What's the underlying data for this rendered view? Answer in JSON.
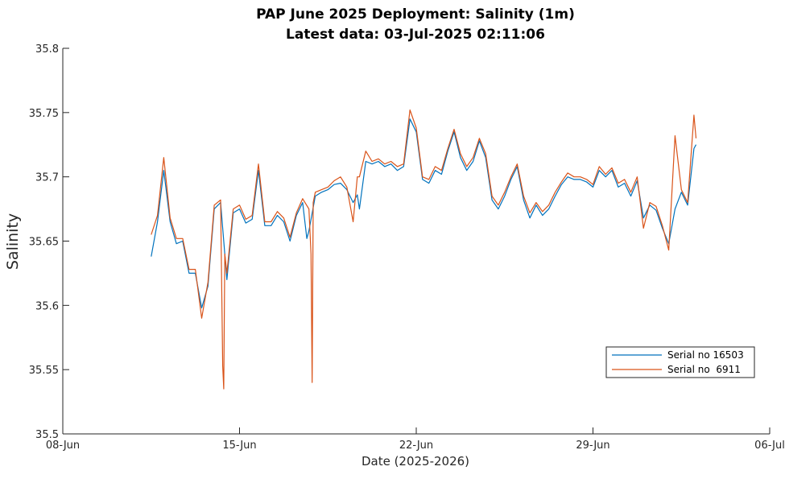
{
  "chart_data": {
    "type": "line",
    "title": "PAP June 2025 Deployment:  Salinity (1m)",
    "subtitle": "Latest data: 03-Jul-2025 02:11:06",
    "xlabel": "Date (2025-2026)",
    "ylabel": "Salinity",
    "xlim": [
      "2025-06-08",
      "2025-07-06"
    ],
    "ylim": [
      35.5,
      35.8
    ],
    "xticks": [
      {
        "date": "2025-06-08",
        "label": "08-Jun"
      },
      {
        "date": "2025-06-15",
        "label": "15-Jun"
      },
      {
        "date": "2025-06-22",
        "label": "22-Jun"
      },
      {
        "date": "2025-06-29",
        "label": "29-Jun"
      },
      {
        "date": "2025-07-06",
        "label": "06-Jul"
      }
    ],
    "yticks": [
      {
        "value": 35.5,
        "label": "35.5"
      },
      {
        "value": 35.55,
        "label": "35.55"
      },
      {
        "value": 35.6,
        "label": "35.6"
      },
      {
        "value": 35.65,
        "label": "35.65"
      },
      {
        "value": 35.7,
        "label": "35.7"
      },
      {
        "value": 35.75,
        "label": "35.75"
      },
      {
        "value": 35.8,
        "label": "35.8"
      }
    ],
    "grid": false,
    "legend_position": "lower-right",
    "series": [
      {
        "name": "Serial no 16503",
        "color": "#0072BD",
        "x": [
          "2025-06-11 12:00",
          "2025-06-11 18:00",
          "2025-06-12 00:00",
          "2025-06-12 06:00",
          "2025-06-12 12:00",
          "2025-06-12 18:00",
          "2025-06-13 00:00",
          "2025-06-13 06:00",
          "2025-06-13 12:00",
          "2025-06-13 18:00",
          "2025-06-14 00:00",
          "2025-06-14 06:00",
          "2025-06-14 12:00",
          "2025-06-14 18:00",
          "2025-06-15 00:00",
          "2025-06-15 06:00",
          "2025-06-15 12:00",
          "2025-06-15 18:00",
          "2025-06-16 00:00",
          "2025-06-16 06:00",
          "2025-06-16 12:00",
          "2025-06-16 18:00",
          "2025-06-17 00:00",
          "2025-06-17 06:00",
          "2025-06-17 12:00",
          "2025-06-17 16:00",
          "2025-06-17 18:00",
          "2025-06-18 00:00",
          "2025-06-18 06:00",
          "2025-06-18 12:00",
          "2025-06-18 18:00",
          "2025-06-19 00:00",
          "2025-06-19 06:00",
          "2025-06-19 12:00",
          "2025-06-19 16:00",
          "2025-06-19 18:00",
          "2025-06-20 00:00",
          "2025-06-20 06:00",
          "2025-06-20 12:00",
          "2025-06-20 18:00",
          "2025-06-21 00:00",
          "2025-06-21 06:00",
          "2025-06-21 12:00",
          "2025-06-21 18:00",
          "2025-06-22 00:00",
          "2025-06-22 06:00",
          "2025-06-22 12:00",
          "2025-06-22 18:00",
          "2025-06-23 00:00",
          "2025-06-23 06:00",
          "2025-06-23 12:00",
          "2025-06-23 18:00",
          "2025-06-24 00:00",
          "2025-06-24 06:00",
          "2025-06-24 12:00",
          "2025-06-24 18:00",
          "2025-06-25 00:00",
          "2025-06-25 06:00",
          "2025-06-25 12:00",
          "2025-06-25 18:00",
          "2025-06-26 00:00",
          "2025-06-26 06:00",
          "2025-06-26 12:00",
          "2025-06-26 18:00",
          "2025-06-27 00:00",
          "2025-06-27 06:00",
          "2025-06-27 12:00",
          "2025-06-27 18:00",
          "2025-06-28 00:00",
          "2025-06-28 06:00",
          "2025-06-28 12:00",
          "2025-06-28 18:00",
          "2025-06-29 00:00",
          "2025-06-29 06:00",
          "2025-06-29 12:00",
          "2025-06-29 18:00",
          "2025-06-30 00:00",
          "2025-06-30 06:00",
          "2025-06-30 12:00",
          "2025-06-30 18:00",
          "2025-07-01 00:00",
          "2025-07-01 06:00",
          "2025-07-01 12:00",
          "2025-07-01 18:00",
          "2025-07-02 00:00",
          "2025-07-02 06:00",
          "2025-07-02 12:00",
          "2025-07-02 18:00",
          "2025-07-03 00:00",
          "2025-07-03 02:00"
        ],
        "y": [
          35.638,
          35.665,
          35.705,
          35.665,
          35.648,
          35.65,
          35.625,
          35.625,
          35.598,
          35.615,
          35.675,
          35.68,
          35.62,
          35.672,
          35.675,
          35.664,
          35.667,
          35.705,
          35.662,
          35.662,
          35.67,
          35.665,
          35.65,
          35.67,
          35.68,
          35.652,
          35.658,
          35.685,
          35.688,
          35.69,
          35.694,
          35.695,
          35.69,
          35.68,
          35.686,
          35.675,
          35.712,
          35.71,
          35.712,
          35.708,
          35.71,
          35.705,
          35.708,
          35.745,
          35.735,
          35.698,
          35.695,
          35.705,
          35.702,
          35.72,
          35.735,
          35.715,
          35.705,
          35.712,
          35.728,
          35.715,
          35.682,
          35.675,
          35.685,
          35.698,
          35.708,
          35.682,
          35.668,
          35.678,
          35.67,
          35.675,
          35.685,
          35.694,
          35.7,
          35.698,
          35.698,
          35.696,
          35.692,
          35.705,
          35.7,
          35.705,
          35.692,
          35.695,
          35.685,
          35.697,
          35.668,
          35.678,
          35.674,
          35.66,
          35.648,
          35.675,
          35.688,
          35.678,
          35.722,
          35.725
        ]
      },
      {
        "name": "Serial no  6911",
        "color": "#D95319",
        "x": [
          "2025-06-11 12:00",
          "2025-06-11 18:00",
          "2025-06-12 00:00",
          "2025-06-12 06:00",
          "2025-06-12 12:00",
          "2025-06-12 18:00",
          "2025-06-13 00:00",
          "2025-06-13 06:00",
          "2025-06-13 12:00",
          "2025-06-13 18:00",
          "2025-06-14 00:00",
          "2025-06-14 06:00",
          "2025-06-14 08:00",
          "2025-06-14 09:00",
          "2025-06-14 10:00",
          "2025-06-14 12:00",
          "2025-06-14 18:00",
          "2025-06-15 00:00",
          "2025-06-15 06:00",
          "2025-06-15 12:00",
          "2025-06-15 18:00",
          "2025-06-16 00:00",
          "2025-06-16 06:00",
          "2025-06-16 12:00",
          "2025-06-16 18:00",
          "2025-06-17 00:00",
          "2025-06-17 06:00",
          "2025-06-17 12:00",
          "2025-06-17 18:00",
          "2025-06-17 20:00",
          "2025-06-17 21:00",
          "2025-06-17 22:00",
          "2025-06-18 00:00",
          "2025-06-18 06:00",
          "2025-06-18 12:00",
          "2025-06-18 18:00",
          "2025-06-19 00:00",
          "2025-06-19 06:00",
          "2025-06-19 12:00",
          "2025-06-19 16:00",
          "2025-06-19 18:00",
          "2025-06-20 00:00",
          "2025-06-20 06:00",
          "2025-06-20 12:00",
          "2025-06-20 18:00",
          "2025-06-21 00:00",
          "2025-06-21 06:00",
          "2025-06-21 12:00",
          "2025-06-21 18:00",
          "2025-06-22 00:00",
          "2025-06-22 06:00",
          "2025-06-22 12:00",
          "2025-06-22 18:00",
          "2025-06-23 00:00",
          "2025-06-23 06:00",
          "2025-06-23 12:00",
          "2025-06-23 18:00",
          "2025-06-24 00:00",
          "2025-06-24 06:00",
          "2025-06-24 12:00",
          "2025-06-24 18:00",
          "2025-06-25 00:00",
          "2025-06-25 06:00",
          "2025-06-25 12:00",
          "2025-06-25 18:00",
          "2025-06-26 00:00",
          "2025-06-26 06:00",
          "2025-06-26 12:00",
          "2025-06-26 18:00",
          "2025-06-27 00:00",
          "2025-06-27 06:00",
          "2025-06-27 12:00",
          "2025-06-27 18:00",
          "2025-06-28 00:00",
          "2025-06-28 06:00",
          "2025-06-28 12:00",
          "2025-06-28 18:00",
          "2025-06-29 00:00",
          "2025-06-29 06:00",
          "2025-06-29 12:00",
          "2025-06-29 18:00",
          "2025-06-30 00:00",
          "2025-06-30 06:00",
          "2025-06-30 12:00",
          "2025-06-30 18:00",
          "2025-07-01 00:00",
          "2025-07-01 06:00",
          "2025-07-01 12:00",
          "2025-07-01 18:00",
          "2025-07-02 00:00",
          "2025-07-02 06:00",
          "2025-07-02 12:00",
          "2025-07-02 18:00",
          "2025-07-03 00:00",
          "2025-07-03 02:00"
        ],
        "y": [
          35.655,
          35.67,
          35.715,
          35.668,
          35.652,
          35.652,
          35.628,
          35.628,
          35.59,
          35.618,
          35.678,
          35.682,
          35.553,
          35.535,
          35.64,
          35.625,
          35.675,
          35.678,
          35.667,
          35.67,
          35.71,
          35.665,
          35.665,
          35.673,
          35.668,
          35.653,
          35.672,
          35.683,
          35.675,
          35.64,
          35.54,
          35.68,
          35.688,
          35.69,
          35.692,
          35.697,
          35.7,
          35.692,
          35.665,
          35.7,
          35.7,
          35.72,
          35.712,
          35.714,
          35.71,
          35.712,
          35.708,
          35.71,
          35.752,
          35.738,
          35.7,
          35.698,
          35.708,
          35.705,
          35.722,
          35.737,
          35.718,
          35.708,
          35.715,
          35.73,
          35.718,
          35.685,
          35.678,
          35.688,
          35.7,
          35.71,
          35.685,
          35.672,
          35.68,
          35.673,
          35.678,
          35.688,
          35.696,
          35.703,
          35.7,
          35.7,
          35.698,
          35.694,
          35.708,
          35.702,
          35.707,
          35.695,
          35.698,
          35.688,
          35.7,
          35.66,
          35.68,
          35.677,
          35.662,
          35.643,
          35.732,
          35.69,
          35.68,
          35.748,
          35.73
        ]
      }
    ]
  }
}
